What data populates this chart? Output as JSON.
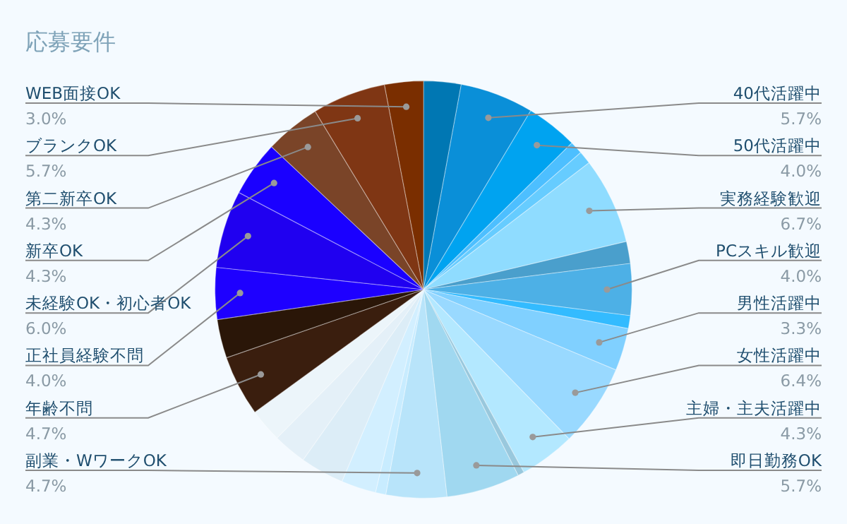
{
  "chart_data": {
    "type": "pie",
    "title": "応募要件",
    "legend": false,
    "categories": [
      null,
      "40代活躍中",
      "50代活躍中",
      null,
      null,
      "実務経験歓迎",
      null,
      "PCスキル歓迎",
      null,
      "男性活躍中",
      "女性活躍中",
      "主婦・主夫活躍中",
      null,
      "即日勤務OK",
      "副業・WワークOK",
      null,
      null,
      null,
      null,
      null,
      "年齢不問",
      null,
      "正社員経験不問",
      "未経験OK・初心者OK",
      "新卒OK",
      "第二新卒OK",
      "ブランクOK",
      "WEB面接OK"
    ],
    "values": [
      2.9,
      5.7,
      4.0,
      1.0,
      1.0,
      6.7,
      1.7,
      4.0,
      1.0,
      3.3,
      6.4,
      4.3,
      0.5,
      5.7,
      4.7,
      0.8,
      2.7,
      3.4,
      2.6,
      2.6,
      4.7,
      3.0,
      4.0,
      6.0,
      4.3,
      4.3,
      5.7,
      3.0
    ],
    "value_labels": [
      null,
      "5.7%",
      "4.0%",
      null,
      null,
      "6.7%",
      null,
      "4.0%",
      null,
      "3.3%",
      "6.4%",
      "4.3%",
      null,
      "5.7%",
      "4.7%",
      null,
      null,
      null,
      null,
      null,
      "4.7%",
      null,
      "4.0%",
      "6.0%",
      "4.3%",
      "4.3%",
      "5.7%",
      "3.0%"
    ],
    "colors": [
      "#0077b3",
      "#0a8fd8",
      "#00a3f0",
      "#4dbfff",
      "#66ccff",
      "#8fdcff",
      "#4a9fcc",
      "#4db0e6",
      "#33bbff",
      "#80d0ff",
      "#99d9ff",
      "#b3e8ff",
      "#99c8dd",
      "#a0d8f0",
      "#b8e4fa",
      "#c8ecff",
      "#d2efff",
      "#dcedf7",
      "#e4f0f8",
      "#ecf5fa",
      "#3a1e0e",
      "#2a1608",
      "#1e00ff",
      "#2000f0",
      "#1a00ff",
      "#7a4428",
      "#7f3614",
      "#7a2e00"
    ]
  }
}
